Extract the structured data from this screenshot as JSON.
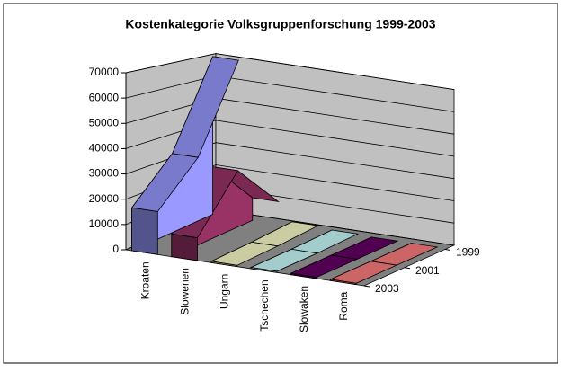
{
  "chart_data": {
    "type": "area3d",
    "title": "Kostenkategorie Volksgruppenforschung 1999-2003",
    "categories": [
      "1999",
      "2001",
      "2003"
    ],
    "series": [
      {
        "name": "Kroaten",
        "color": "#9999FF",
        "values": [
          70000,
          33000,
          17000
        ]
      },
      {
        "name": "Slowenen",
        "color": "#993366",
        "values": [
          10000,
          30000,
          9000
        ]
      },
      {
        "name": "Ungarn",
        "color": "#FFFFCC",
        "values": [
          2000,
          1000,
          500
        ]
      },
      {
        "name": "Tschechen",
        "color": "#CCFFFF",
        "values": [
          1000,
          500,
          500
        ]
      },
      {
        "name": "Slowaken",
        "color": "#660066",
        "values": [
          500,
          500,
          500
        ]
      },
      {
        "name": "Roma",
        "color": "#FF8080",
        "values": [
          500,
          500,
          500
        ]
      }
    ],
    "ylim": [
      0,
      70000
    ],
    "yticks": [
      0,
      10000,
      20000,
      30000,
      40000,
      50000,
      60000,
      70000
    ],
    "grid": true
  }
}
